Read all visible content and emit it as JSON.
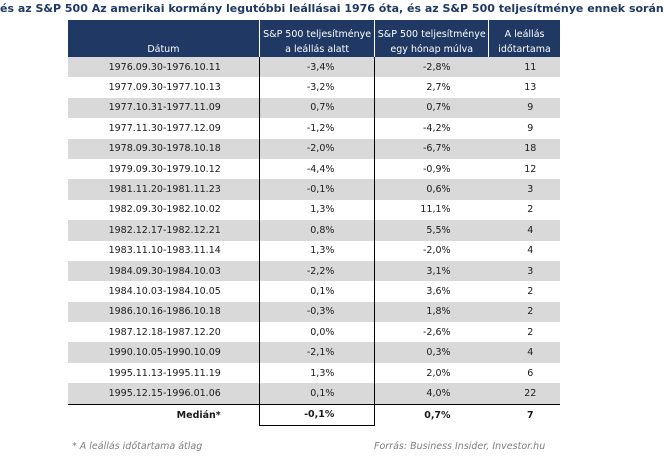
{
  "title": "és az S&P 500 Az amerikai kormány legutóbbi leállásai 1976 óta, és az S&P 500 teljesítménye ennek során",
  "headers": {
    "date": "Dátum",
    "perf_during_1": "S&P 500 teljesítménye",
    "perf_during_2": "a leállás alatt",
    "perf_month_1": "S&P 500 teljesítménye",
    "perf_month_2": "egy hónap múlva",
    "duration_1": "A leállás",
    "duration_2": "időtartama"
  },
  "rows": [
    {
      "date": "1976.09.30-1976.10.11",
      "during": "-3,4%",
      "month": "-2,8%",
      "days": "11"
    },
    {
      "date": "1977.09.30-1977.10.13",
      "during": "-3,2%",
      "month": "2,7%",
      "days": "13"
    },
    {
      "date": "1977.10.31-1977.11.09",
      "during": "0,7%",
      "month": "0,7%",
      "days": "9"
    },
    {
      "date": "1977.11.30-1977.12.09",
      "during": "-1,2%",
      "month": "-4,2%",
      "days": "9"
    },
    {
      "date": "1978.09.30-1978.10.18",
      "during": "-2,0%",
      "month": "-6,7%",
      "days": "18"
    },
    {
      "date": "1979.09.30-1979.10.12",
      "during": "-4,4%",
      "month": "-0,9%",
      "days": "12"
    },
    {
      "date": "1981.11.20-1981.11.23",
      "during": "-0,1%",
      "month": "0,6%",
      "days": "3"
    },
    {
      "date": "1982.09.30-1982.10.02",
      "during": "1,3%",
      "month": "11,1%",
      "days": "2"
    },
    {
      "date": "1982.12.17-1982.12.21",
      "during": "0,8%",
      "month": "5,5%",
      "days": "4"
    },
    {
      "date": "1983.11.10-1983.11.14",
      "during": "1,3%",
      "month": "-2,0%",
      "days": "4"
    },
    {
      "date": "1984.09.30-1984.10.03",
      "during": "-2,2%",
      "month": "3,1%",
      "days": "3"
    },
    {
      "date": "1984.10.03-1984.10.05",
      "during": "0,1%",
      "month": "3,6%",
      "days": "2"
    },
    {
      "date": "1986.10.16-1986.10.18",
      "during": "-0,3%",
      "month": "1,8%",
      "days": "2"
    },
    {
      "date": "1987.12.18-1987.12.20",
      "during": "0,0%",
      "month": "-2,6%",
      "days": "2"
    },
    {
      "date": "1990.10.05-1990.10.09",
      "during": "-2,1%",
      "month": "0,3%",
      "days": "4"
    },
    {
      "date": "1995.11.13-1995.11.19",
      "during": "1,3%",
      "month": "2,0%",
      "days": "6"
    },
    {
      "date": "1995.12.15-1996.01.06",
      "during": "0,1%",
      "month": "4,0%",
      "days": "22"
    }
  ],
  "median": {
    "label": "Medián*",
    "during": "-0,1%",
    "month": "0,7%",
    "days": "7"
  },
  "footnote": "* A leállás időtartama átlag",
  "source": "Forrás: Business Insider, Investor.hu"
}
